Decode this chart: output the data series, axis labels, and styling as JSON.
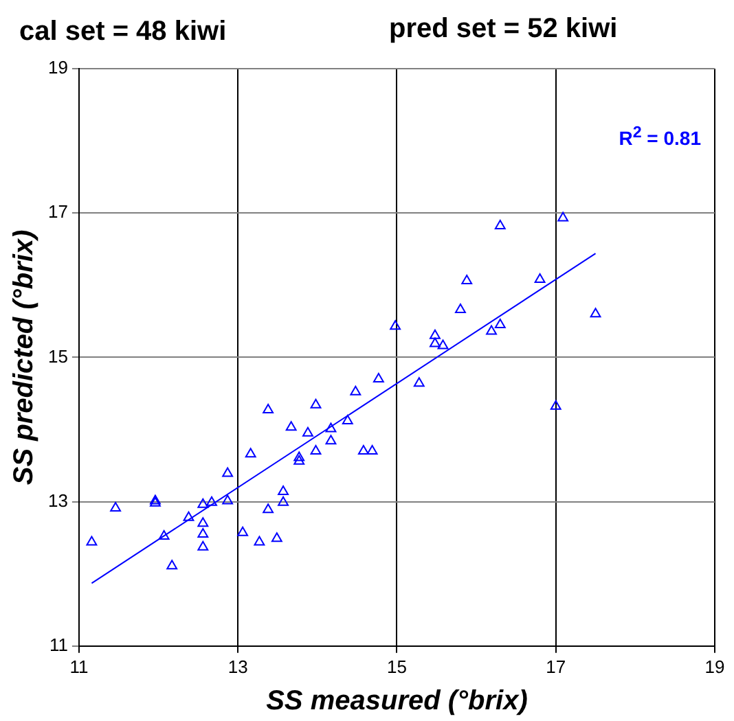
{
  "chart_data": {
    "type": "scatter",
    "title": "cal set = 48 kiwi",
    "subtitle": "pred set = 52 kiwi",
    "xlabel": "SS measured (°brix)",
    "ylabel": "SS predicted (°brix)",
    "annotations": [
      "R$^{2}$ = 0.81"
    ],
    "xlim": [
      11,
      19
    ],
    "xticks": [
      11,
      13,
      15,
      17,
      19
    ],
    "ylim": [
      11,
      19
    ],
    "yticks": [
      11,
      13,
      15,
      17,
      19
    ],
    "grid": true,
    "legend": false,
    "series": [
      {
        "color": "#0000ff",
        "marker": "triangle",
        "x": [
          11.16,
          11.46,
          11.96,
          11.96,
          12.17,
          12.07,
          12.38,
          12.56,
          12.56,
          12.56,
          12.56,
          12.67,
          12.87,
          12.87,
          13.06,
          13.16,
          13.27,
          13.38,
          13.38,
          13.49,
          13.57,
          13.57,
          13.67,
          13.77,
          13.77,
          13.88,
          13.98,
          13.98,
          14.17,
          14.17,
          14.38,
          14.48,
          14.58,
          14.69,
          14.77,
          14.98,
          15.28,
          15.48,
          15.48,
          15.58,
          15.8,
          15.88,
          16.19,
          16.3,
          16.3,
          16.8,
          17.09,
          17.0,
          17.5
        ],
        "values": [
          12.44,
          12.91,
          13.01,
          12.98,
          12.11,
          12.52,
          12.78,
          12.96,
          12.7,
          12.55,
          12.37,
          12.99,
          13.01,
          13.39,
          12.57,
          13.66,
          12.44,
          14.27,
          12.89,
          12.49,
          13.14,
          12.99,
          14.03,
          13.61,
          13.56,
          13.95,
          14.34,
          13.7,
          14.01,
          13.84,
          14.12,
          14.52,
          13.7,
          13.7,
          14.7,
          15.43,
          14.64,
          15.3,
          15.19,
          15.16,
          15.66,
          16.06,
          15.36,
          15.45,
          16.82,
          16.08,
          16.93,
          14.32,
          15.6
        ]
      },
      {
        "type": "line",
        "color": "#0000ff",
        "x": [
          11.16,
          17.5
        ],
        "values": [
          11.87,
          16.44
        ]
      }
    ]
  }
}
